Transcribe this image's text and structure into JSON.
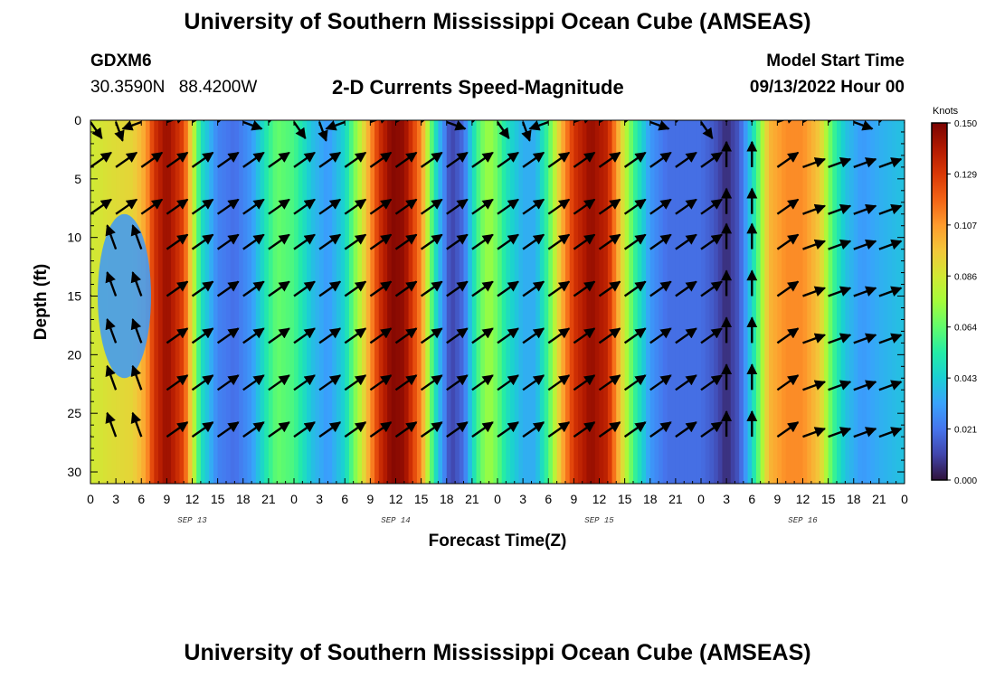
{
  "header": {
    "title": "University of Southern Mississippi Ocean Cube (AMSEAS)",
    "station": "GDXM6",
    "lat": "30.3590N",
    "lon": "88.4200W",
    "subtitle": "2-D Currents Speed-Magnitude",
    "model_start_label": "Model Start Time",
    "model_start_value": "09/13/2022 Hour 00"
  },
  "footer": {
    "title": "University of Southern Mississippi Ocean Cube (AMSEAS)"
  },
  "chart_data": {
    "type": "heatmap",
    "title": "2-D Currents Speed-Magnitude",
    "xlabel": "Forecast Time(Z)",
    "ylabel": "Depth (ft)",
    "x_range_hours": [
      0,
      96
    ],
    "y_range_ft": [
      0,
      31
    ],
    "x_tick_labels": [
      "0",
      "3",
      "6",
      "9",
      "12",
      "15",
      "18",
      "21",
      "0",
      "3",
      "6",
      "9",
      "12",
      "15",
      "18",
      "21",
      "0",
      "3",
      "6",
      "9",
      "12",
      "15",
      "18",
      "21",
      "0",
      "3",
      "6",
      "9",
      "12",
      "15",
      "18",
      "21",
      "0"
    ],
    "y_ticks": [
      0,
      5,
      10,
      15,
      20,
      25,
      30
    ],
    "y_tick_labels": [
      "0",
      "5",
      "10",
      "15",
      "20",
      "25",
      "30"
    ],
    "day_labels": [
      {
        "text": "SEP 13",
        "hour": 12
      },
      {
        "text": "SEP 14",
        "hour": 36
      },
      {
        "text": "SEP 15",
        "hour": 60
      },
      {
        "text": "SEP 16",
        "hour": 84
      }
    ],
    "colorbar": {
      "units": "Knots",
      "min": 0.0,
      "max": 0.15,
      "labels": [
        "0.150",
        "0.129",
        "0.107",
        "0.086",
        "0.064",
        "0.043",
        "0.021",
        "0.000"
      ],
      "colors": [
        "#30123b",
        "#4145ab",
        "#4675ed",
        "#39a2fc",
        "#1bcfd4",
        "#24eca6",
        "#61fc6c",
        "#a4fc3b",
        "#d1e834",
        "#f3c63a",
        "#fe9b2d",
        "#f36315",
        "#d93806",
        "#b11901",
        "#7a0402"
      ]
    },
    "speed_by_time": [
      {
        "hour": 0,
        "knots": 0.085
      },
      {
        "hour": 3,
        "knots": 0.09
      },
      {
        "hour": 5,
        "knots": 0.092
      },
      {
        "hour": 6.5,
        "knots": 0.105
      },
      {
        "hour": 7.5,
        "knots": 0.13
      },
      {
        "hour": 9,
        "knots": 0.145
      },
      {
        "hour": 11,
        "knots": 0.125
      },
      {
        "hour": 13,
        "knots": 0.05
      },
      {
        "hour": 15,
        "knots": 0.025
      },
      {
        "hour": 17,
        "knots": 0.02
      },
      {
        "hour": 19,
        "knots": 0.03
      },
      {
        "hour": 21,
        "knots": 0.055
      },
      {
        "hour": 22,
        "knots": 0.065
      },
      {
        "hour": 24,
        "knots": 0.06
      },
      {
        "hour": 26,
        "knots": 0.04
      },
      {
        "hour": 28,
        "knots": 0.03
      },
      {
        "hour": 30,
        "knots": 0.045
      },
      {
        "hour": 32,
        "knots": 0.085
      },
      {
        "hour": 34,
        "knots": 0.13
      },
      {
        "hour": 35.5,
        "knots": 0.148
      },
      {
        "hour": 37,
        "knots": 0.145
      },
      {
        "hour": 39,
        "knots": 0.11
      },
      {
        "hour": 40,
        "knots": 0.07
      },
      {
        "hour": 41,
        "knots": 0.04
      },
      {
        "hour": 42.5,
        "knots": 0.01
      },
      {
        "hour": 44,
        "knots": 0.02
      },
      {
        "hour": 45,
        "knots": 0.045
      },
      {
        "hour": 46,
        "knots": 0.065
      },
      {
        "hour": 47,
        "knots": 0.075
      },
      {
        "hour": 48,
        "knots": 0.065
      },
      {
        "hour": 49,
        "knots": 0.05
      },
      {
        "hour": 51,
        "knots": 0.035
      },
      {
        "hour": 52.5,
        "knots": 0.035
      },
      {
        "hour": 54,
        "knots": 0.06
      },
      {
        "hour": 55.5,
        "knots": 0.1
      },
      {
        "hour": 57,
        "knots": 0.13
      },
      {
        "hour": 59,
        "knots": 0.145
      },
      {
        "hour": 61,
        "knots": 0.135
      },
      {
        "hour": 62.5,
        "knots": 0.095
      },
      {
        "hour": 64,
        "knots": 0.06
      },
      {
        "hour": 66,
        "knots": 0.03
      },
      {
        "hour": 68,
        "knots": 0.02
      },
      {
        "hour": 70,
        "knots": 0.02
      },
      {
        "hour": 72,
        "knots": 0.02
      },
      {
        "hour": 73.5,
        "knots": 0.015
      },
      {
        "hour": 75,
        "knots": 0.005
      },
      {
        "hour": 76.5,
        "knots": 0.015
      },
      {
        "hour": 78,
        "knots": 0.045
      },
      {
        "hour": 79,
        "knots": 0.07
      },
      {
        "hour": 80,
        "knots": 0.1
      },
      {
        "hour": 82,
        "knots": 0.11
      },
      {
        "hour": 84,
        "knots": 0.11
      },
      {
        "hour": 86,
        "knots": 0.095
      },
      {
        "hour": 87.5,
        "knots": 0.06
      },
      {
        "hour": 89,
        "knots": 0.04
      },
      {
        "hour": 91,
        "knots": 0.03
      },
      {
        "hour": 93,
        "knots": 0.035
      },
      {
        "hour": 96,
        "knots": 0.04
      }
    ],
    "early_low_speed_patch": {
      "hour_start": 0,
      "hour_end": 7.5,
      "depth_start_ft": 8,
      "depth_end_ft": 22,
      "knots": 0.03
    },
    "vectors": {
      "times_hours": [
        0,
        3,
        6,
        9,
        12,
        15,
        18,
        21,
        24,
        27,
        30,
        33,
        36,
        39,
        42,
        45,
        48,
        51,
        54,
        57,
        60,
        63,
        66,
        69,
        72,
        75,
        78,
        81,
        84,
        87,
        90,
        93,
        96
      ],
      "depths_ft": [
        0,
        4,
        8,
        11,
        15,
        19,
        23,
        27
      ],
      "default_direction": "northeast",
      "note": "vectors near the surface vary direction; vertical arrows near hour 75-78"
    }
  }
}
